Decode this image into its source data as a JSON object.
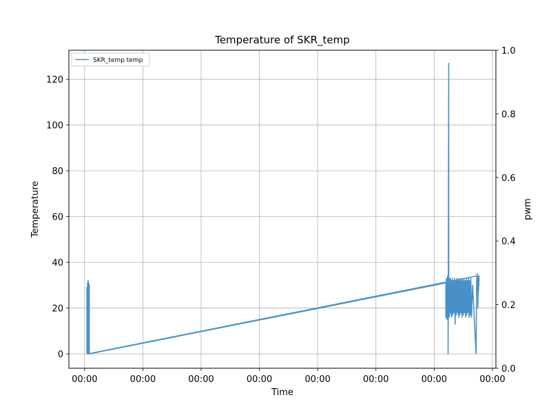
{
  "chart_data": {
    "type": "line",
    "title": "Temperature of SKR_temp",
    "xlabel": "Time",
    "ylabel": "Temperature",
    "y2label": "pwm",
    "x_tick_labels": [
      "00:00",
      "00:00",
      "00:00",
      "00:00",
      "00:00",
      "00:00",
      "00:00",
      "00:00"
    ],
    "x_ticks": [
      0,
      1,
      2,
      3,
      4,
      5,
      6,
      7
    ],
    "xlim": [
      -0.27,
      7.06
    ],
    "ylim": [
      -6.3,
      132.7
    ],
    "y_ticks": [
      0,
      20,
      40,
      60,
      80,
      100,
      120
    ],
    "y2lim": [
      0.0,
      1.0
    ],
    "y2_ticks": [
      0.0,
      0.2,
      0.4,
      0.6,
      0.8,
      1.0
    ],
    "y2_tick_labels": [
      "0.0",
      "0.2",
      "0.4",
      "0.6",
      "0.8",
      "1.0"
    ],
    "grid": true,
    "legend_position": "top-left",
    "series_color": "#4a90c8",
    "series": [
      {
        "name": "SKR_temp temp",
        "x": [
          0.04,
          0.04,
          0.05,
          0.05,
          0.06,
          0.06,
          0.07,
          0.07,
          0.07,
          0.08,
          0.08,
          0.08,
          6.2,
          6.2,
          6.21,
          6.21,
          6.22,
          6.22,
          6.23,
          6.23,
          6.24,
          6.24,
          6.25,
          6.25,
          6.26,
          6.26,
          6.27,
          6.27,
          6.28,
          6.29,
          6.3,
          6.3,
          6.31,
          6.32,
          6.33,
          6.34,
          6.35,
          6.36,
          6.37,
          6.38,
          6.39,
          6.4,
          6.41,
          6.42,
          6.43,
          6.44,
          6.45,
          6.46,
          6.47,
          6.48,
          6.49,
          6.5,
          6.51,
          6.52,
          6.53,
          6.54,
          6.55,
          6.56,
          6.57,
          6.58,
          6.59,
          6.6,
          6.61,
          6.62,
          6.63,
          6.64,
          6.66,
          6.72,
          6.73,
          6.73,
          6.74,
          6.74,
          6.75,
          6.75,
          6.76,
          6.76,
          6.77,
          6.77,
          6.72,
          0.06
        ],
        "y": [
          0,
          29,
          0,
          31,
          0,
          32,
          0,
          31,
          0,
          30,
          2,
          0,
          31,
          16,
          33,
          17,
          32,
          15,
          34,
          16,
          33,
          0,
          127,
          18,
          33,
          16,
          32,
          18,
          33,
          17,
          32,
          16,
          33,
          17,
          32,
          18,
          33,
          13,
          32,
          17,
          33,
          18,
          32,
          16,
          33,
          17,
          32,
          18,
          33,
          16,
          32,
          17,
          33,
          18,
          32,
          16,
          33,
          17,
          32,
          18,
          33,
          16,
          32,
          17,
          33,
          16,
          30,
          0,
          33,
          27,
          35,
          26,
          34,
          20,
          33,
          27,
          32,
          34,
          34,
          0
        ]
      }
    ]
  }
}
